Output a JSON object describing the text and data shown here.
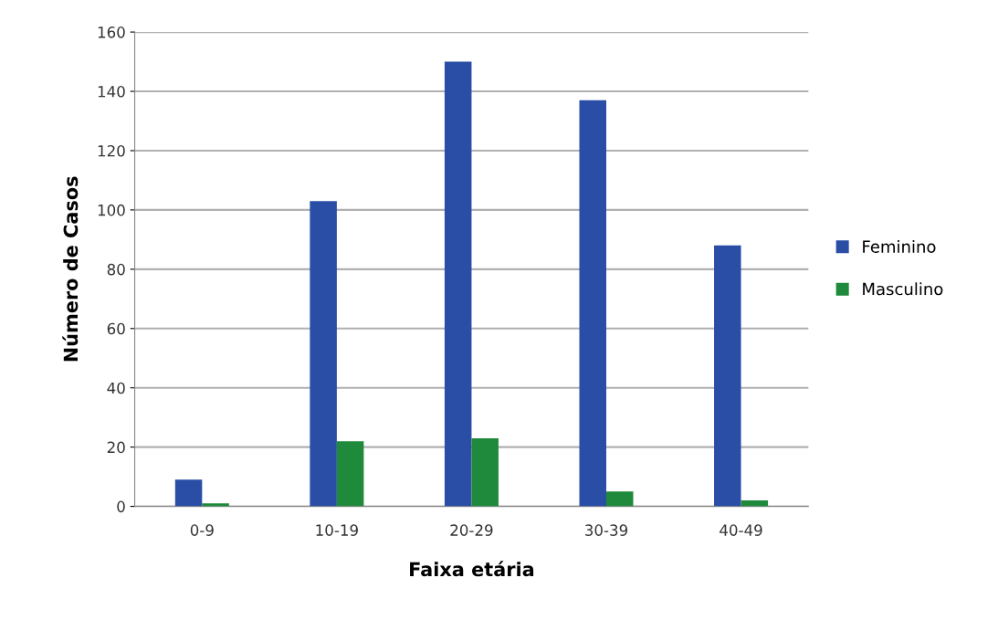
{
  "chart_data": {
    "type": "bar",
    "xlabel": "Faixa etária",
    "ylabel": "Número de Casos",
    "categories": [
      "0-9",
      "10-19",
      "20-29",
      "30-39",
      "40-49"
    ],
    "series": [
      {
        "name": "Feminino",
        "color": "#2a4ea6",
        "values": [
          9,
          103,
          150,
          137,
          88
        ]
      },
      {
        "name": "Masculino",
        "color": "#1f8a3b",
        "values": [
          1,
          22,
          23,
          5,
          2
        ]
      }
    ],
    "ylim": [
      0,
      160
    ],
    "yticks": [
      0,
      20,
      40,
      60,
      80,
      100,
      120,
      140,
      160
    ],
    "grid": "y",
    "legend": "right"
  }
}
